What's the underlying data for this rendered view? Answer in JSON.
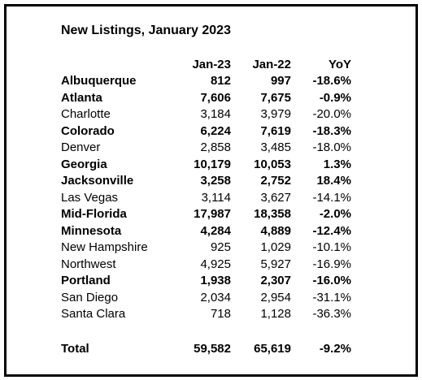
{
  "title": "New Listings, January 2023",
  "table": {
    "header": [
      "",
      "Jan-23",
      "Jan-22",
      "YoY"
    ],
    "rows": [
      {
        "cells": [
          "Albuquerque",
          "812",
          "997",
          "-18.6%"
        ],
        "bold": true
      },
      {
        "cells": [
          "Atlanta",
          "7,606",
          "7,675",
          "-0.9%"
        ],
        "bold": true
      },
      {
        "cells": [
          "Charlotte",
          "3,184",
          "3,979",
          "-20.0%"
        ],
        "bold": false
      },
      {
        "cells": [
          "Colorado",
          "6,224",
          "7,619",
          "-18.3%"
        ],
        "bold": true
      },
      {
        "cells": [
          "Denver",
          "2,858",
          "3,485",
          "-18.0%"
        ],
        "bold": false
      },
      {
        "cells": [
          "Georgia",
          "10,179",
          "10,053",
          "1.3%"
        ],
        "bold": true
      },
      {
        "cells": [
          "Jacksonville",
          "3,258",
          "2,752",
          "18.4%"
        ],
        "bold": true
      },
      {
        "cells": [
          "Las Vegas",
          "3,114",
          "3,627",
          "-14.1%"
        ],
        "bold": false
      },
      {
        "cells": [
          "Mid-Florida",
          "17,987",
          "18,358",
          "-2.0%"
        ],
        "bold": true
      },
      {
        "cells": [
          "Minnesota",
          "4,284",
          "4,889",
          "-12.4%"
        ],
        "bold": true
      },
      {
        "cells": [
          "New Hampshire",
          "925",
          "1,029",
          "-10.1%"
        ],
        "bold": false
      },
      {
        "cells": [
          "Northwest",
          "4,925",
          "5,927",
          "-16.9%"
        ],
        "bold": false
      },
      {
        "cells": [
          "Portland",
          "1,938",
          "2,307",
          "-16.0%"
        ],
        "bold": true
      },
      {
        "cells": [
          "San Diego",
          "2,034",
          "2,954",
          "-31.1%"
        ],
        "bold": false
      },
      {
        "cells": [
          "Santa Clara",
          "718",
          "1,128",
          "-36.3%"
        ],
        "bold": false
      }
    ],
    "total": {
      "cells": [
        "Total",
        "59,582",
        "65,619",
        "-9.2%"
      ],
      "bold": true
    }
  }
}
